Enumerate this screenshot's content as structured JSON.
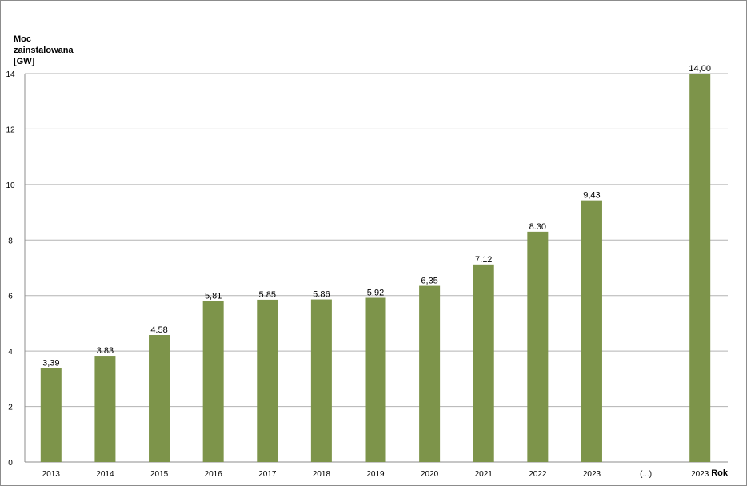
{
  "chart_data": {
    "type": "bar",
    "ylabel": [
      "Moc",
      "zainstalowana",
      "[GW]"
    ],
    "xlabel": "Rok",
    "ylim": [
      0,
      14
    ],
    "yticks": [
      "0",
      "2",
      "4",
      "6",
      "8",
      "10",
      "12",
      "14"
    ],
    "grid": true,
    "bar_color": "#7d944a",
    "categories": [
      "2013",
      "2014",
      "2015",
      "2016",
      "2017",
      "2018",
      "2019",
      "2020",
      "2021",
      "2022",
      "2023",
      "(...)",
      "2023"
    ],
    "values": [
      3.39,
      3.83,
      4.58,
      5.81,
      5.85,
      5.86,
      5.92,
      6.35,
      7.12,
      8.3,
      9.43,
      null,
      14.0
    ],
    "data_labels": [
      "3,39",
      "3.83",
      "4.58",
      "5,81",
      "5.85",
      "5.86",
      "5,92",
      "6,35",
      "7.12",
      "8.30",
      "9,43",
      "",
      "14,00"
    ]
  }
}
